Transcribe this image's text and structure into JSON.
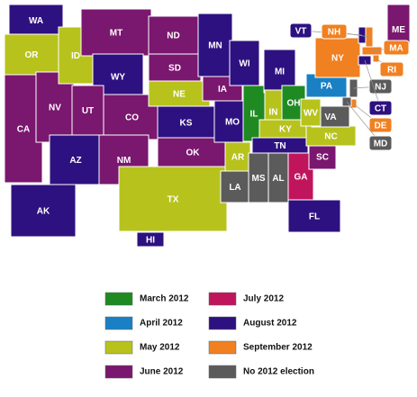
{
  "states": [
    {
      "abbr": "WA",
      "color": "#2e1180"
    },
    {
      "abbr": "OR",
      "color": "#b7c31c"
    },
    {
      "abbr": "CA",
      "color": "#7a176f"
    },
    {
      "abbr": "NV",
      "color": "#7a176f"
    },
    {
      "abbr": "ID",
      "color": "#b7c31c"
    },
    {
      "abbr": "MT",
      "color": "#7a176f"
    },
    {
      "abbr": "WY",
      "color": "#2e1180"
    },
    {
      "abbr": "UT",
      "color": "#7a176f"
    },
    {
      "abbr": "CO",
      "color": "#7a176f"
    },
    {
      "abbr": "AZ",
      "color": "#2e1180"
    },
    {
      "abbr": "NM",
      "color": "#7a176f"
    },
    {
      "abbr": "ND",
      "color": "#7a176f"
    },
    {
      "abbr": "SD",
      "color": "#7a176f"
    },
    {
      "abbr": "NE",
      "color": "#b7c31c"
    },
    {
      "abbr": "KS",
      "color": "#2e1180"
    },
    {
      "abbr": "OK",
      "color": "#7a176f"
    },
    {
      "abbr": "TX",
      "color": "#b7c31c"
    },
    {
      "abbr": "MN",
      "color": "#2e1180"
    },
    {
      "abbr": "IA",
      "color": "#7a176f"
    },
    {
      "abbr": "MO",
      "color": "#2e1180"
    },
    {
      "abbr": "AR",
      "color": "#b7c31c"
    },
    {
      "abbr": "LA",
      "color": "#5b5b5b"
    },
    {
      "abbr": "WI",
      "color": "#2e1180"
    },
    {
      "abbr": "IL",
      "color": "#1f8a22"
    },
    {
      "abbr": "MI",
      "color": "#2e1180"
    },
    {
      "abbr": "IN",
      "color": "#b7c31c"
    },
    {
      "abbr": "OH",
      "color": "#1f8a22"
    },
    {
      "abbr": "KY",
      "color": "#b7c31c"
    },
    {
      "abbr": "TN",
      "color": "#2e1180"
    },
    {
      "abbr": "MS",
      "color": "#5b5b5b"
    },
    {
      "abbr": "AL",
      "color": "#5b5b5b"
    },
    {
      "abbr": "GA",
      "color": "#c0155d"
    },
    {
      "abbr": "FL",
      "color": "#2e1180"
    },
    {
      "abbr": "SC",
      "color": "#7a176f"
    },
    {
      "abbr": "NC",
      "color": "#b7c31c"
    },
    {
      "abbr": "VA",
      "color": "#5b5b5b"
    },
    {
      "abbr": "WV",
      "color": "#b7c31c"
    },
    {
      "abbr": "PA",
      "color": "#1a80c4"
    },
    {
      "abbr": "NY",
      "color": "#f08020"
    },
    {
      "abbr": "ME",
      "color": "#7a176f"
    },
    {
      "abbr": "AK",
      "color": "#2e1180"
    },
    {
      "abbr": "HI",
      "color": "#2e1180"
    },
    {
      "abbr": "VT",
      "color": "#2e1180"
    },
    {
      "abbr": "NH",
      "color": "#f08020"
    },
    {
      "abbr": "MA",
      "color": "#f08020"
    },
    {
      "abbr": "RI",
      "color": "#f08020"
    },
    {
      "abbr": "NJ",
      "color": "#5b5b5b"
    },
    {
      "abbr": "CT",
      "color": "#2e1180"
    },
    {
      "abbr": "DE",
      "color": "#f08020"
    },
    {
      "abbr": "MD",
      "color": "#5b5b5b"
    }
  ],
  "legend": [
    {
      "label": "March 2012",
      "color": "#1f8a22"
    },
    {
      "label": "July 2012",
      "color": "#c0155d"
    },
    {
      "label": "April 2012",
      "color": "#1a80c4"
    },
    {
      "label": "August 2012",
      "color": "#2e1180"
    },
    {
      "label": "May 2012",
      "color": "#b7c31c"
    },
    {
      "label": "September 2012",
      "color": "#f08020"
    },
    {
      "label": "June 2012",
      "color": "#7a176f"
    },
    {
      "label": "No 2012 election",
      "color": "#5b5b5b"
    }
  ]
}
